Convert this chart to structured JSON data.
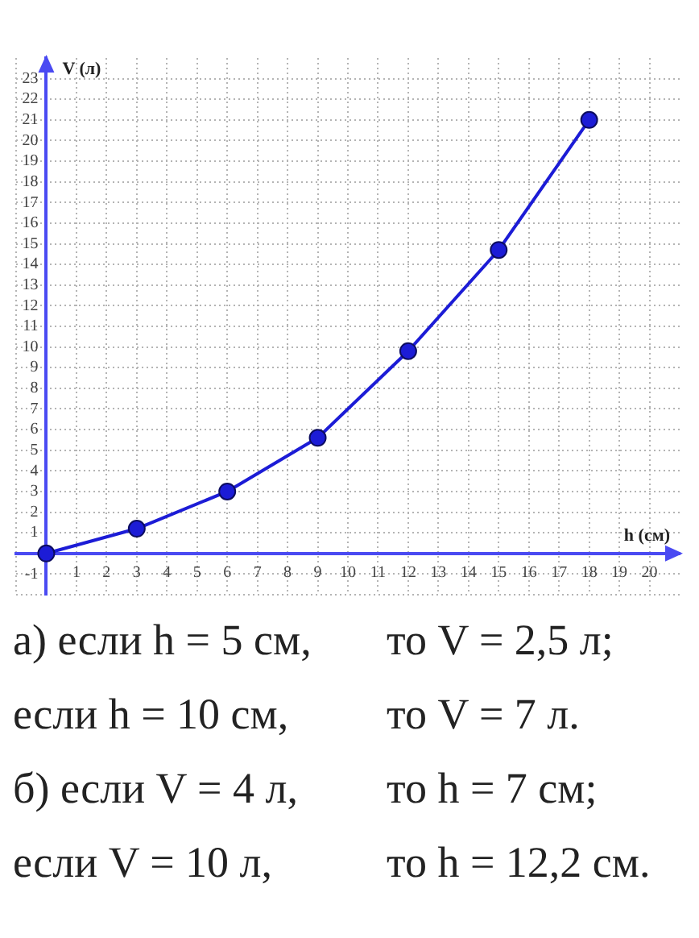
{
  "chart_data": {
    "type": "line",
    "xlabel": "h (см)",
    "ylabel": "V (л)",
    "x": [
      0,
      3,
      6,
      9,
      12,
      15,
      18
    ],
    "series": [
      {
        "color": "#1c1cd6",
        "values": [
          0,
          1.2,
          3,
          5.6,
          9.8,
          14.7,
          21
        ]
      }
    ],
    "xlim": [
      -1,
      21
    ],
    "xticks": [
      {
        "value": -1,
        "label": null
      },
      {
        "value": 0,
        "label": null
      },
      1,
      2,
      3,
      4,
      5,
      6,
      7,
      8,
      9,
      10,
      11,
      12,
      13,
      14,
      15,
      16,
      17,
      18,
      19,
      20
    ],
    "ylim": [
      -2,
      24
    ],
    "yticks": [
      {
        "value": -2,
        "label": null
      },
      -1,
      {
        "value": 0,
        "label": null
      },
      1,
      2,
      3,
      4,
      5,
      6,
      7,
      8,
      9,
      10,
      11,
      12,
      13,
      14,
      15,
      16,
      17,
      18,
      19,
      20,
      21,
      22,
      23
    ],
    "grid": true,
    "marker": "circle",
    "line_style": "solid",
    "annotations": [
      "а) если h = 5 см,",
      "то V = 2,5 л;",
      "если h = 10 см,",
      "то V = 7 л.",
      "б) если V = 4 л,",
      "то h = 7 см;",
      "если V = 10 л,",
      "то h = 12,2 см."
    ]
  }
}
